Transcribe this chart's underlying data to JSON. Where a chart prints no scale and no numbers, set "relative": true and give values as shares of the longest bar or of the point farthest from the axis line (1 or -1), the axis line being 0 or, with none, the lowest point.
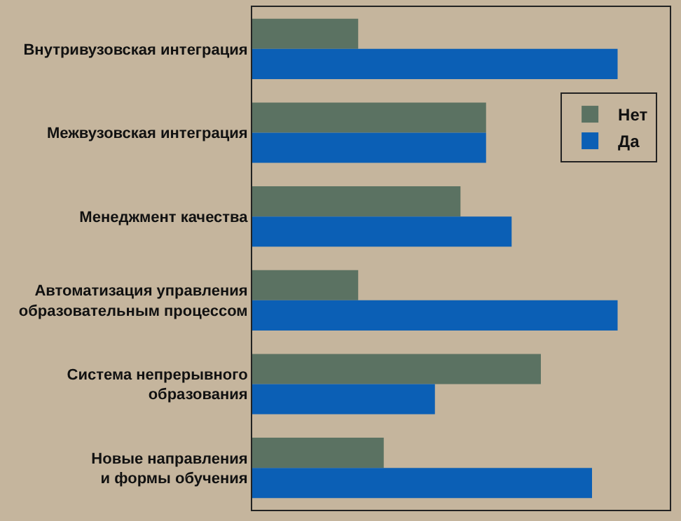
{
  "chart_data": {
    "type": "bar",
    "orientation": "horizontal",
    "relative": true,
    "legend": "top right",
    "categories": [
      "Внутривузовская интеграция",
      "Межвузовская интеграция",
      "Менеджмент качества",
      "Автоматизация управления\nобразовательным процессом",
      "Система непрерывного\nобразования",
      "Новые направления\nи формы обучения"
    ],
    "series": [
      {
        "name": "Нет",
        "color": "#5b7262",
        "values": [
          0.29,
          0.64,
          0.57,
          0.29,
          0.79,
          0.36
        ]
      },
      {
        "name": "Да",
        "color": "#0b5fb5",
        "values": [
          1,
          0.64,
          0.71,
          1,
          0.5,
          0.93
        ]
      }
    ]
  }
}
